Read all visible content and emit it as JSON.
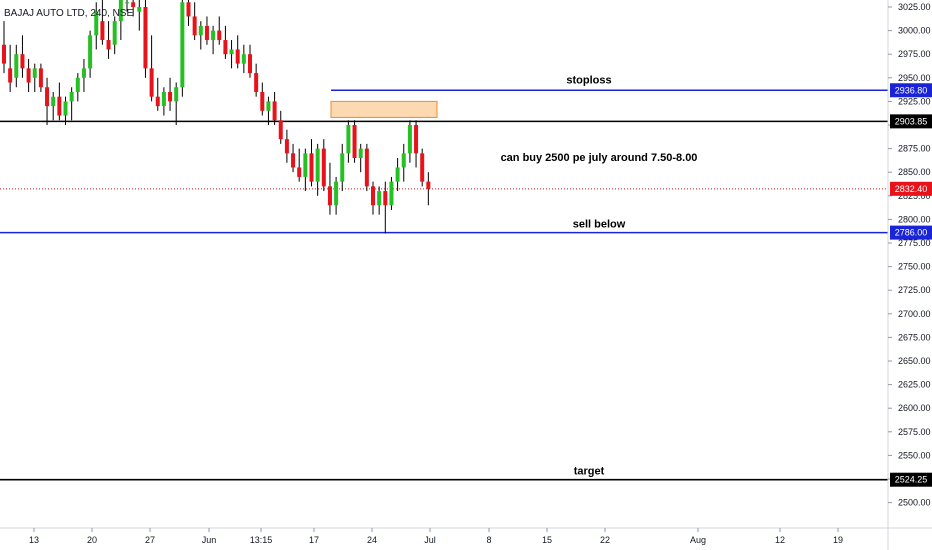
{
  "chart_data": {
    "type": "candlestick",
    "title": "BAJAJ AUTO LTD, 240, NSE",
    "ylim": [
      2480,
      3040
    ],
    "y_ticks": [
      3025,
      3000,
      2975,
      2950,
      2925,
      2900,
      2875,
      2850,
      2825,
      2800,
      2775,
      2750,
      2725,
      2700,
      2675,
      2650,
      2625,
      2600,
      2575,
      2550,
      2525,
      2500
    ],
    "y_tick_labels": [
      "3025.00",
      "3000.00",
      "2975.00",
      "2950.00",
      "2925.00",
      "2900.00",
      "2875.00",
      "2850.00",
      "2825.00",
      "2800.00",
      "2775.00",
      "2750.00",
      "2725.00",
      "2700.00",
      "2675.00",
      "2650.00",
      "2625.00",
      "2600.00",
      "2575.00",
      "2550.00",
      "2525.00",
      "2500.00"
    ],
    "x_ticks": [
      "13",
      "20",
      "27",
      "Jun",
      "13:15",
      "17",
      "24",
      "Jul",
      "8",
      "15",
      "22",
      "Aug",
      "12",
      "19"
    ],
    "colors": {
      "up": "#26c024",
      "down": "#e8121a",
      "blue_line": "#1a23d6",
      "black_line": "#000000",
      "current": "#e8121a",
      "zone_fill": "#fcd9b0",
      "zone_border": "#f08c2a"
    },
    "candles": [
      {
        "o": 2985,
        "h": 3010,
        "l": 2955,
        "c": 2965
      },
      {
        "o": 2960,
        "h": 2985,
        "l": 2935,
        "c": 2945
      },
      {
        "o": 2950,
        "h": 2985,
        "l": 2940,
        "c": 2975
      },
      {
        "o": 2975,
        "h": 2995,
        "l": 2950,
        "c": 2960
      },
      {
        "o": 2960,
        "h": 2970,
        "l": 2935,
        "c": 2945
      },
      {
        "o": 2950,
        "h": 2965,
        "l": 2935,
        "c": 2960
      },
      {
        "o": 2960,
        "h": 2965,
        "l": 2935,
        "c": 2940
      },
      {
        "o": 2940,
        "h": 2950,
        "l": 2900,
        "c": 2920
      },
      {
        "o": 2920,
        "h": 2935,
        "l": 2905,
        "c": 2930
      },
      {
        "o": 2930,
        "h": 2945,
        "l": 2905,
        "c": 2910
      },
      {
        "o": 2910,
        "h": 2930,
        "l": 2900,
        "c": 2925
      },
      {
        "o": 2925,
        "h": 2940,
        "l": 2905,
        "c": 2935
      },
      {
        "o": 2935,
        "h": 2955,
        "l": 2925,
        "c": 2950
      },
      {
        "o": 2950,
        "h": 2970,
        "l": 2935,
        "c": 2960
      },
      {
        "o": 2960,
        "h": 3000,
        "l": 2950,
        "c": 2995
      },
      {
        "o": 2995,
        "h": 3030,
        "l": 2980,
        "c": 3020
      },
      {
        "o": 3010,
        "h": 3035,
        "l": 2985,
        "c": 2990
      },
      {
        "o": 2990,
        "h": 3010,
        "l": 2970,
        "c": 2980
      },
      {
        "o": 2985,
        "h": 3015,
        "l": 2975,
        "c": 3010
      },
      {
        "o": 3010,
        "h": 3040,
        "l": 2990,
        "c": 3035
      },
      {
        "o": 3030,
        "h": 3040,
        "l": 3020,
        "c": 3030
      },
      {
        "o": 3030,
        "h": 3040,
        "l": 3015,
        "c": 3025
      },
      {
        "o": 3020,
        "h": 3040,
        "l": 3000,
        "c": 3025
      },
      {
        "o": 3025,
        "h": 3040,
        "l": 2950,
        "c": 2960
      },
      {
        "o": 2960,
        "h": 2995,
        "l": 2925,
        "c": 2930
      },
      {
        "o": 2930,
        "h": 2950,
        "l": 2915,
        "c": 2920
      },
      {
        "o": 2920,
        "h": 2940,
        "l": 2910,
        "c": 2935
      },
      {
        "o": 2935,
        "h": 2950,
        "l": 2915,
        "c": 2925
      },
      {
        "o": 2925,
        "h": 2945,
        "l": 2900,
        "c": 2940
      },
      {
        "o": 2940,
        "h": 3035,
        "l": 2930,
        "c": 3030
      },
      {
        "o": 3030,
        "h": 3040,
        "l": 3005,
        "c": 3015
      },
      {
        "o": 3015,
        "h": 3030,
        "l": 2990,
        "c": 2995
      },
      {
        "o": 2995,
        "h": 3010,
        "l": 2980,
        "c": 3005
      },
      {
        "o": 3005,
        "h": 3015,
        "l": 2985,
        "c": 2990
      },
      {
        "o": 2990,
        "h": 3005,
        "l": 2975,
        "c": 3000
      },
      {
        "o": 3000,
        "h": 3015,
        "l": 2985,
        "c": 2990
      },
      {
        "o": 2990,
        "h": 3005,
        "l": 2970,
        "c": 2975
      },
      {
        "o": 2975,
        "h": 2990,
        "l": 2960,
        "c": 2980
      },
      {
        "o": 2980,
        "h": 2995,
        "l": 2960,
        "c": 2965
      },
      {
        "o": 2965,
        "h": 2985,
        "l": 2955,
        "c": 2975
      },
      {
        "o": 2975,
        "h": 2985,
        "l": 2950,
        "c": 2955
      },
      {
        "o": 2955,
        "h": 2965,
        "l": 2930,
        "c": 2935
      },
      {
        "o": 2935,
        "h": 2945,
        "l": 2910,
        "c": 2915
      },
      {
        "o": 2915,
        "h": 2930,
        "l": 2900,
        "c": 2925
      },
      {
        "o": 2925,
        "h": 2935,
        "l": 2900,
        "c": 2905
      },
      {
        "o": 2905,
        "h": 2915,
        "l": 2880,
        "c": 2885
      },
      {
        "o": 2885,
        "h": 2895,
        "l": 2860,
        "c": 2870
      },
      {
        "o": 2870,
        "h": 2880,
        "l": 2850,
        "c": 2855
      },
      {
        "o": 2855,
        "h": 2875,
        "l": 2840,
        "c": 2845
      },
      {
        "o": 2845,
        "h": 2875,
        "l": 2830,
        "c": 2870
      },
      {
        "o": 2870,
        "h": 2885,
        "l": 2835,
        "c": 2840
      },
      {
        "o": 2840,
        "h": 2880,
        "l": 2825,
        "c": 2875
      },
      {
        "o": 2875,
        "h": 2885,
        "l": 2830,
        "c": 2835
      },
      {
        "o": 2835,
        "h": 2860,
        "l": 2805,
        "c": 2815
      },
      {
        "o": 2815,
        "h": 2845,
        "l": 2805,
        "c": 2840
      },
      {
        "o": 2840,
        "h": 2880,
        "l": 2830,
        "c": 2870
      },
      {
        "o": 2870,
        "h": 2905,
        "l": 2860,
        "c": 2900
      },
      {
        "o": 2900,
        "h": 2905,
        "l": 2860,
        "c": 2865
      },
      {
        "o": 2865,
        "h": 2880,
        "l": 2850,
        "c": 2875
      },
      {
        "o": 2875,
        "h": 2880,
        "l": 2830,
        "c": 2835
      },
      {
        "o": 2835,
        "h": 2840,
        "l": 2805,
        "c": 2815
      },
      {
        "o": 2815,
        "h": 2835,
        "l": 2805,
        "c": 2830
      },
      {
        "o": 2830,
        "h": 2840,
        "l": 2785,
        "c": 2815
      },
      {
        "o": 2815,
        "h": 2845,
        "l": 2810,
        "c": 2840
      },
      {
        "o": 2840,
        "h": 2865,
        "l": 2830,
        "c": 2855
      },
      {
        "o": 2855,
        "h": 2880,
        "l": 2840,
        "c": 2870
      },
      {
        "o": 2870,
        "h": 2905,
        "l": 2860,
        "c": 2900
      },
      {
        "o": 2900,
        "h": 2905,
        "l": 2855,
        "c": 2870
      },
      {
        "o": 2870,
        "h": 2875,
        "l": 2835,
        "c": 2840
      },
      {
        "o": 2840,
        "h": 2850,
        "l": 2815,
        "c": 2832.4
      }
    ],
    "annotations": [
      {
        "text": "stoploss",
        "price": 2936.8
      },
      {
        "text": "can buy 2500 pe july around 7.50-8.00",
        "price": 2862
      },
      {
        "text": "sell below",
        "price": 2786.0
      },
      {
        "text": "target",
        "price": 2524.25
      }
    ],
    "levels": [
      {
        "price": 2936.8,
        "label": "2936.80",
        "style": "blue"
      },
      {
        "price": 2903.85,
        "label": "2903.85",
        "style": "black"
      },
      {
        "price": 2832.4,
        "label": "2832.40",
        "style": "current"
      },
      {
        "price": 2786.0,
        "label": "2786.00",
        "style": "blue"
      },
      {
        "price": 2524.25,
        "label": "2524.25",
        "style": "black"
      }
    ],
    "zone": {
      "top": 2925,
      "bottom": 2908
    }
  }
}
